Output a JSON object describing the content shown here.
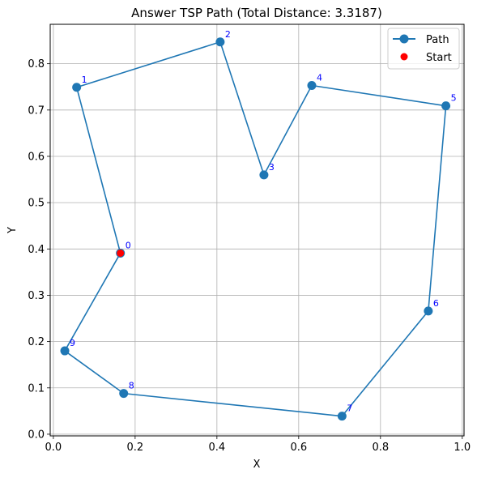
{
  "chart_data": {
    "type": "line",
    "title": "Answer TSP Path (Total Distance: 3.3187)",
    "xlabel": "X",
    "ylabel": "Y",
    "xlim": [
      -0.0077,
      1.0044
    ],
    "ylim": [
      -0.0036,
      0.8851
    ],
    "xticks": [
      0.0,
      0.2,
      0.4,
      0.6,
      0.8,
      1.0
    ],
    "xtick_labels": [
      "0.0",
      "0.2",
      "0.4",
      "0.6",
      "0.8",
      "1.0"
    ],
    "yticks": [
      0.0,
      0.1,
      0.2,
      0.3,
      0.4,
      0.5,
      0.6,
      0.7,
      0.8
    ],
    "ytick_labels": [
      "0.0",
      "0.1",
      "0.2",
      "0.3",
      "0.4",
      "0.5",
      "0.6",
      "0.7",
      "0.8"
    ],
    "grid": true,
    "legend_position": "top-right",
    "colors": {
      "path": "#1f77b4",
      "start": "#ff0000",
      "point_label": "#0000ff",
      "grid": "#b0b0b0"
    },
    "nodes": [
      {
        "id": "0",
        "x": 0.164,
        "y": 0.391
      },
      {
        "id": "1",
        "x": 0.057,
        "y": 0.749
      },
      {
        "id": "2",
        "x": 0.408,
        "y": 0.847
      },
      {
        "id": "3",
        "x": 0.515,
        "y": 0.56
      },
      {
        "id": "4",
        "x": 0.632,
        "y": 0.753
      },
      {
        "id": "5",
        "x": 0.96,
        "y": 0.709
      },
      {
        "id": "6",
        "x": 0.917,
        "y": 0.266
      },
      {
        "id": "7",
        "x": 0.706,
        "y": 0.039
      },
      {
        "id": "8",
        "x": 0.172,
        "y": 0.088
      },
      {
        "id": "9",
        "x": 0.028,
        "y": 0.18
      }
    ],
    "path_order": [
      "0",
      "1",
      "2",
      "3",
      "4",
      "5",
      "6",
      "7",
      "8",
      "9",
      "0"
    ],
    "start": {
      "id": "0",
      "x": 0.164,
      "y": 0.391
    },
    "series": [
      {
        "name": "Path"
      },
      {
        "name": "Start"
      }
    ]
  }
}
